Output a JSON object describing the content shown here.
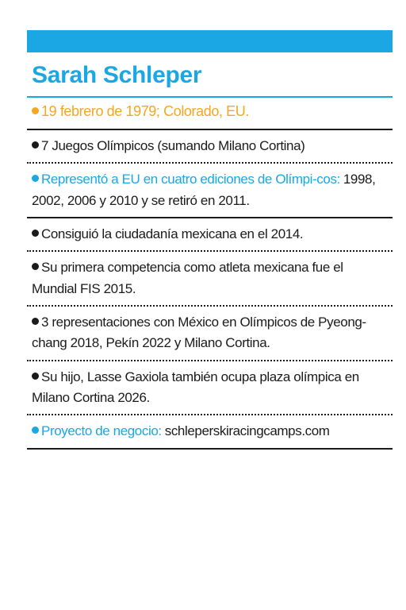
{
  "card": {
    "name": "Sarah Schleper",
    "birth": "19 febrero de 1979; Colorado, EU.",
    "items": [
      {
        "text": "7 Juegos Olímpicos (sumando Milano Cortina)"
      },
      {
        "lead": "Representó a EU en cuatro ediciones de Olímpi-cos:",
        "text": "1998, 2002, 2006 y 2010 y se retiró en 2011."
      },
      {
        "text": "Consiguió la ciudadanía mexicana en el 2014."
      },
      {
        "text": "Su primera competencia como atleta mexicana fue el Mundial FIS 2015."
      },
      {
        "text": "3 representaciones con México en Olímpicos de Pyeong-chang 2018, Pekín 2022 y Milano Cortina."
      },
      {
        "text": "Su hijo, Lasse Gaxiola también ocupa plaza olímpica en Milano Cortina 2026."
      },
      {
        "lead": "Proyecto de negocio:",
        "text": "schleperskiracingcamps.com"
      }
    ]
  },
  "colors": {
    "accent_blue": "#1aa7e4",
    "accent_orange": "#f5a623",
    "text": "#1b1b1b"
  }
}
